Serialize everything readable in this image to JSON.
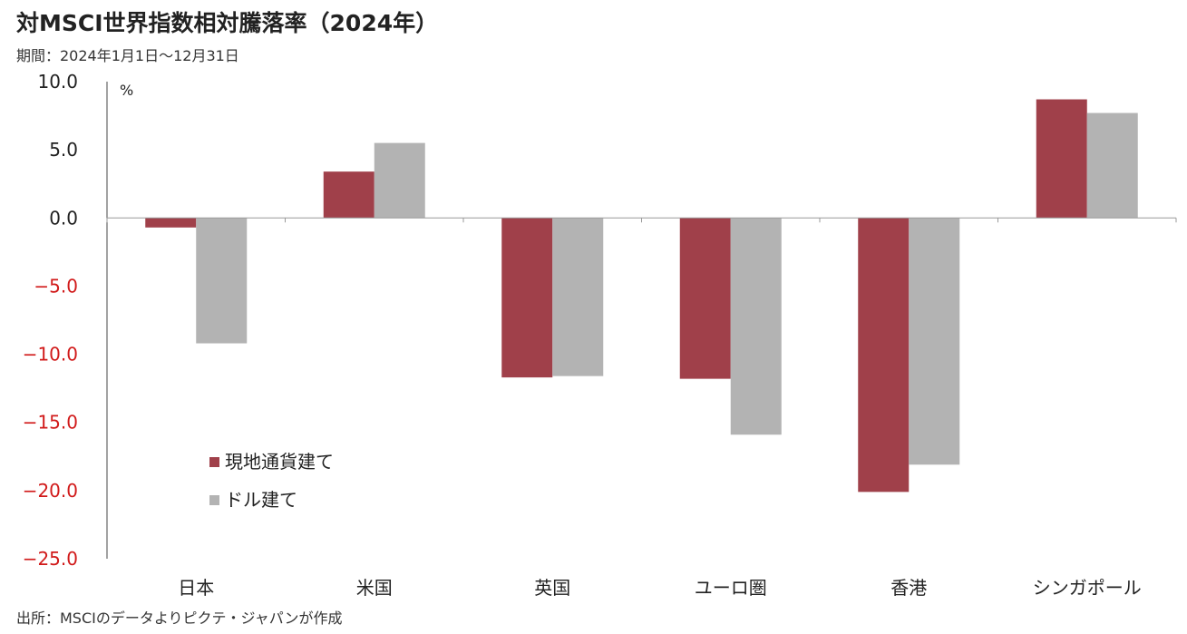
{
  "title": "対MSCI世界指数相対騰落率（2024年）",
  "subtitle": "期間：2024年1月1日～12月31日",
  "source": "出所：MSCIのデータよりピクテ・ジャパンが作成",
  "colors": {
    "series1": "#a0404a",
    "series2": "#b3b3b3",
    "negative_tick": "#d11a1a",
    "positive_tick": "#222222"
  },
  "chart_data": {
    "type": "bar",
    "unit": "%",
    "categories": [
      "日本",
      "米国",
      "英国",
      "ユーロ圏",
      "香港",
      "シンガポール"
    ],
    "series": [
      {
        "name": "現地通貨建て",
        "values": [
          -0.7,
          3.4,
          -11.7,
          -11.8,
          -20.1,
          8.7
        ]
      },
      {
        "name": "ドル建て",
        "values": [
          -9.2,
          5.5,
          -11.6,
          -15.9,
          -18.1,
          7.7
        ]
      }
    ],
    "ylim": [
      -25,
      10
    ],
    "yticks": [
      "10.0",
      "5.0",
      "0.0",
      "-5.0",
      "-10.0",
      "-15.0",
      "-20.0",
      "-25.0"
    ],
    "ytick_values": [
      10,
      5,
      0,
      -5,
      -10,
      -15,
      -20,
      -25
    ],
    "legend_position": "lower-left",
    "grid": false
  }
}
